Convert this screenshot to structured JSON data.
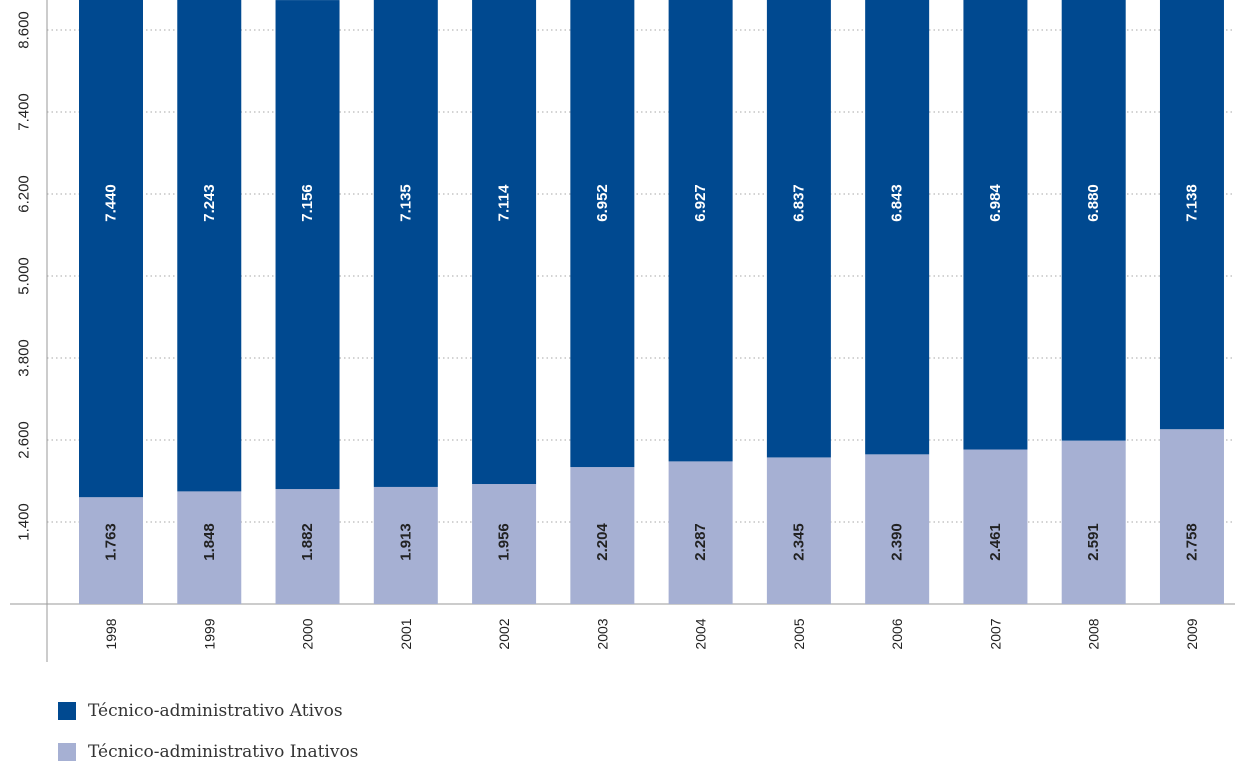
{
  "colors": {
    "active": "#004990",
    "inactive": "#a6b0d3",
    "grid": "#a7a7a7",
    "axis": "#9a9a9a",
    "active_label": "#ffffff",
    "inactive_label": "#222222",
    "tick_label": "#222222"
  },
  "chart_data": {
    "type": "bar",
    "stacked": true,
    "orientation": "vertical",
    "categories": [
      "1998",
      "1999",
      "2000",
      "2001",
      "2002",
      "2003",
      "2004",
      "2005",
      "2006",
      "2007",
      "2008",
      "2009"
    ],
    "series": [
      {
        "name": "Técnico-administrativo Inativos",
        "color": "#a6b0d3",
        "values": [
          1763,
          1848,
          1882,
          1913,
          1956,
          2204,
          2287,
          2345,
          2390,
          2461,
          2591,
          2758
        ],
        "labels": [
          "1.763",
          "1.848",
          "1.882",
          "1.913",
          "1.956",
          "2.204",
          "2.287",
          "2.345",
          "2.390",
          "2.461",
          "2.591",
          "2.758"
        ]
      },
      {
        "name": "Técnico-administrativo Ativos",
        "color": "#004990",
        "values": [
          7440,
          7243,
          7156,
          7135,
          7114,
          6952,
          6927,
          6837,
          6843,
          6984,
          6880,
          7138
        ],
        "labels": [
          "7.440",
          "7.243",
          "7.156",
          "7.135",
          "7.114",
          "6.952",
          "6.927",
          "6.837",
          "6.843",
          "6.984",
          "6.880",
          "7.138"
        ]
      }
    ],
    "y_ticks": [
      1400,
      2600,
      3800,
      5000,
      6200,
      7400,
      8600
    ],
    "y_tick_labels": [
      "1.400",
      "2.600",
      "3.800",
      "5.000",
      "6.200",
      "7.400",
      "8.600"
    ],
    "grid": true,
    "legend_position": "bottom-left"
  },
  "legend": {
    "items": [
      {
        "label": "Técnico-administrativo Ativos",
        "color": "#004990"
      },
      {
        "label": "Técnico-administrativo Inativos",
        "color": "#a6b0d3"
      }
    ]
  }
}
